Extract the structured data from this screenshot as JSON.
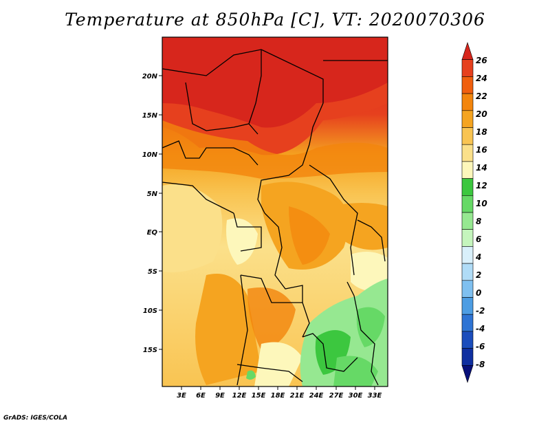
{
  "title": "Temperature at 850hPa [C], VT: 2020070306",
  "footer": "GrADS: IGES/COLA",
  "lat_ticks": [
    "20N",
    "15N",
    "10N",
    "5N",
    "EQ",
    "5S",
    "10S",
    "15S"
  ],
  "lon_ticks": [
    "3E",
    "6E",
    "9E",
    "12E",
    "15E",
    "18E",
    "21E",
    "24E",
    "27E",
    "30E",
    "33E"
  ],
  "colorbar": {
    "labels": [
      "26",
      "24",
      "22",
      "20",
      "18",
      "16",
      "14",
      "12",
      "10",
      "8",
      "6",
      "4",
      "2",
      "0",
      "-2",
      "-4",
      "-6",
      "-8"
    ],
    "colors": [
      "#d7261c",
      "#e6401e",
      "#f05f0e",
      "#f3850c",
      "#f5a420",
      "#f9c452",
      "#fbe08a",
      "#fdf7bb",
      "#3cc73f",
      "#66d966",
      "#96e891",
      "#c5f5bd",
      "#d9f0fb",
      "#b0dcf7",
      "#7fc0f0",
      "#4d9de3",
      "#2e74d4",
      "#1b4dbc",
      "#0f2fa0",
      "#08107a"
    ]
  }
}
